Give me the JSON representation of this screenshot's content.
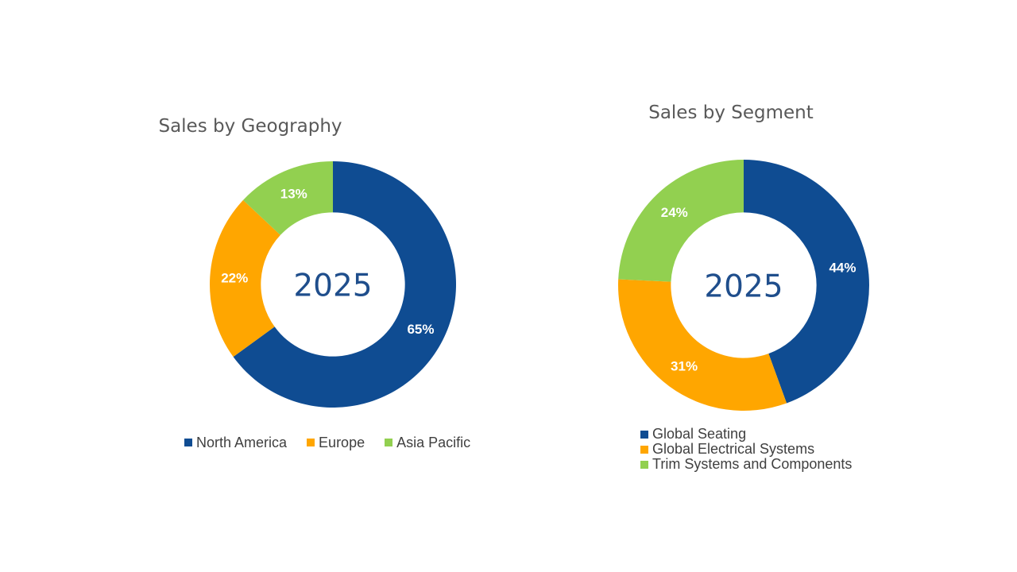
{
  "chart_data": [
    {
      "type": "pie",
      "title": "Sales by Geography",
      "center_label": "2025",
      "categories": [
        "North America",
        "Europe",
        "Asia Pacific"
      ],
      "values": [
        65,
        22,
        13
      ],
      "data_labels": [
        "65%",
        "22%",
        "13%"
      ],
      "colors": [
        "#0F4C92",
        "#FFA600",
        "#92D050"
      ],
      "legend_position": "bottom"
    },
    {
      "type": "pie",
      "title": "Sales by Segment",
      "center_label": "2025",
      "categories": [
        "Global Seating",
        "Global Electrical Systems",
        "Trim Systems and Components"
      ],
      "values": [
        44,
        31,
        24
      ],
      "data_labels": [
        "44%",
        "31%",
        "24%"
      ],
      "colors": [
        "#0F4C92",
        "#FFA600",
        "#92D050"
      ],
      "legend_position": "bottom"
    }
  ]
}
